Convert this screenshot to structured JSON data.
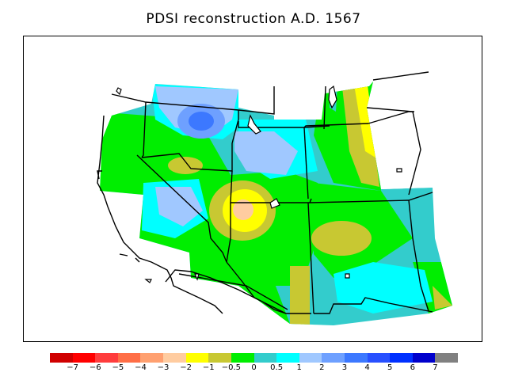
{
  "title": "PDSI reconstruction A.D. 1567",
  "legend": {
    "colors": [
      "#d00000",
      "#ff0000",
      "#ff3c3c",
      "#ff6e46",
      "#ffa070",
      "#ffcca0",
      "#ffff00",
      "#c8c832",
      "#00ee00",
      "#33cccc",
      "#00ffff",
      "#a0c8ff",
      "#6ea0ff",
      "#3c78ff",
      "#2850ff",
      "#0030ff",
      "#0000cc",
      "#808080"
    ],
    "labels": [
      "−7",
      "−6",
      "−5",
      "−4",
      "−3",
      "−2",
      "−1",
      "−0.5",
      "0",
      "0.5",
      "1",
      "2",
      "3",
      "4",
      "5",
      "6",
      "7"
    ]
  }
}
